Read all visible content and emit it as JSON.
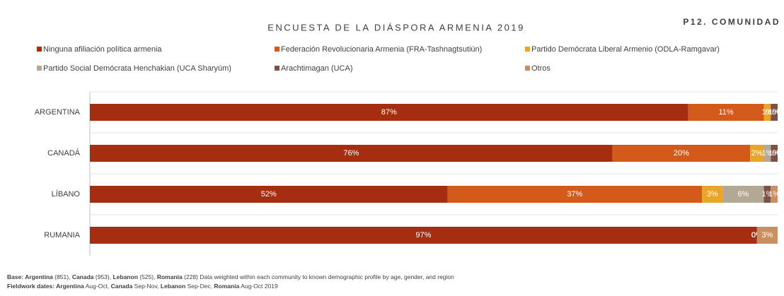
{
  "chart_data": {
    "type": "stacked_barh",
    "title": "ENCUESTA DE LA DIÁSPORA ARMENIA 2019",
    "subtitle": "P12. COMUNIDAD",
    "categories": [
      "ARGENTINA",
      "CANADÁ",
      "LÍBANO",
      "RUMANIA"
    ],
    "xlim": [
      0,
      100
    ],
    "series": [
      {
        "name": "Ninguna afiliación política armenia",
        "color": "#a52e10",
        "values": [
          87,
          76,
          52,
          97
        ],
        "value_labels": [
          "87%",
          "76%",
          "52%",
          "97%"
        ]
      },
      {
        "name": "Federación Revolucionaria Armenia (FRA-Tashnagtsutiún)",
        "color": "#d45a1c",
        "values": [
          11,
          20,
          37,
          0
        ],
        "value_labels": [
          "11%",
          "20%",
          "37%",
          "0%"
        ]
      },
      {
        "name": "Partido Demócrata Liberal Armenio (ODLA-Ramgavar)",
        "color": "#e9a42b",
        "values": [
          1,
          2,
          3,
          0
        ],
        "value_labels": [
          "1%",
          "2%",
          "3%",
          "0%"
        ]
      },
      {
        "name": "Partido Social Demócrata Henchakian (UCA Sharyúm)",
        "color": "#b3a796",
        "values": [
          0,
          1,
          6,
          0
        ],
        "value_labels": [
          "0%",
          "1%",
          "6%",
          "0%"
        ]
      },
      {
        "name": "Arachtimagan (UCA)",
        "color": "#7b5245",
        "values": [
          1,
          1,
          1,
          0
        ],
        "value_labels": [
          "1%",
          "1%",
          "1%",
          "0%"
        ]
      },
      {
        "name": "Otros",
        "color": "#c98f62",
        "values": [
          0,
          0,
          1,
          3
        ],
        "value_labels": [
          "0%",
          "0%",
          "1%",
          "3%"
        ]
      }
    ],
    "footnotes": [
      [
        {
          "text": "Base: ",
          "bold": true
        },
        {
          "text": "Argentina",
          "bold": true
        },
        {
          "text": " (851), ",
          "bold": false
        },
        {
          "text": "Canada",
          "bold": true
        },
        {
          "text": " (953), ",
          "bold": false
        },
        {
          "text": "Lebanon",
          "bold": true
        },
        {
          "text": "  (525), ",
          "bold": false
        },
        {
          "text": "Romania",
          "bold": true
        },
        {
          "text": " (228) Data weighted within each community to known demographic profile by age, gender, and region",
          "bold": false
        }
      ],
      [
        {
          "text": "Fieldwork dates: Argentina",
          "bold": true
        },
        {
          "text": " Aug-Oct, ",
          "bold": false
        },
        {
          "text": "Canada",
          "bold": true
        },
        {
          "text": " Sep-Nov,  ",
          "bold": false
        },
        {
          "text": "Lebanon",
          "bold": true
        },
        {
          "text": " Sep-Dec, ",
          "bold": false
        },
        {
          "text": "Romania",
          "bold": true
        },
        {
          "text": " Aug-Oct 2019",
          "bold": false
        }
      ]
    ]
  }
}
